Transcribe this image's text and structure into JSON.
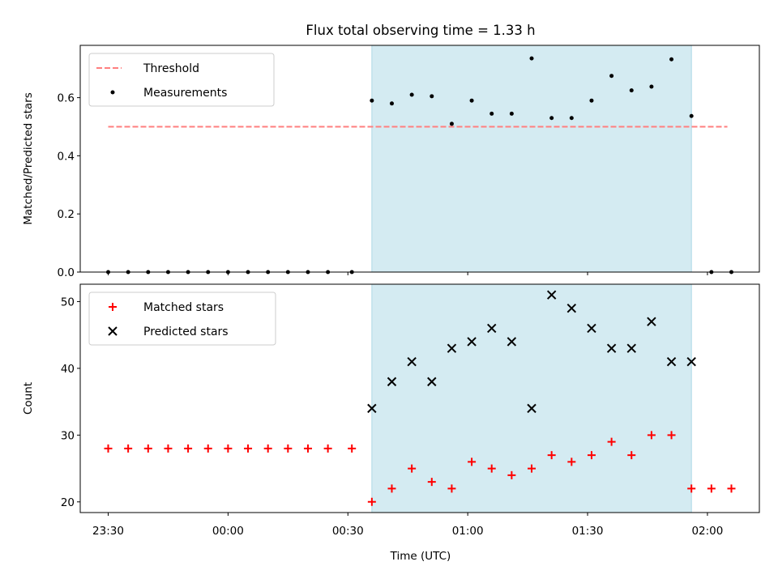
{
  "title": "Flux total observing time = 1.33 h",
  "x_axis": {
    "label": "Time (UTC)",
    "tick_labels": [
      "23:30",
      "00:00",
      "00:30",
      "01:00",
      "01:30",
      "02:00"
    ]
  },
  "colors": {
    "shade": "#add8e6",
    "threshold": "#ff7f7f",
    "measurement": "#000000",
    "matched": "#ff0000",
    "predicted": "#000000"
  },
  "chart_data": [
    {
      "type": "scatter",
      "ylabel": "Matched/Predicted stars",
      "ylim": [
        0,
        0.78
      ],
      "yticks": [
        0.0,
        0.2,
        0.4,
        0.6
      ],
      "xlim": [
        "23:23",
        "02:13"
      ],
      "shaded_interval": [
        "00:36",
        "01:56"
      ],
      "threshold": {
        "name": "Threshold",
        "value": 0.5,
        "x_from": "23:30",
        "x_to": "02:05"
      },
      "legend": {
        "position": "upper left",
        "entries": [
          "Threshold",
          "Measurements"
        ]
      },
      "series": [
        {
          "name": "Measurements",
          "x": [
            "23:30",
            "23:35",
            "23:40",
            "23:45",
            "23:50",
            "23:55",
            "00:00",
            "00:05",
            "00:10",
            "00:15",
            "00:20",
            "00:25",
            "00:31",
            "00:36",
            "00:41",
            "00:46",
            "00:51",
            "00:56",
            "01:01",
            "01:06",
            "01:11",
            "01:16",
            "01:21",
            "01:26",
            "01:31",
            "01:36",
            "01:41",
            "01:46",
            "01:51",
            "01:56",
            "02:01",
            "02:06"
          ],
          "y": [
            0,
            0,
            0,
            0,
            0,
            0,
            0,
            0,
            0,
            0,
            0,
            0,
            0,
            0.59,
            0.58,
            0.61,
            0.605,
            0.51,
            0.59,
            0.545,
            0.545,
            0.735,
            0.53,
            0.53,
            0.59,
            0.675,
            0.625,
            0.638,
            0.732,
            0.537,
            0,
            0
          ]
        }
      ]
    },
    {
      "type": "scatter",
      "ylabel": "Count",
      "ylim": [
        18.4,
        52.6
      ],
      "yticks": [
        20,
        30,
        40,
        50
      ],
      "xlim": [
        "23:23",
        "02:13"
      ],
      "shaded_interval": [
        "00:36",
        "01:56"
      ],
      "legend": {
        "position": "upper left",
        "entries": [
          "Matched stars",
          "Predicted stars"
        ]
      },
      "series": [
        {
          "name": "Matched stars",
          "marker": "+",
          "x": [
            "23:30",
            "23:35",
            "23:40",
            "23:45",
            "23:50",
            "23:55",
            "00:00",
            "00:05",
            "00:10",
            "00:15",
            "00:20",
            "00:25",
            "00:31",
            "00:36",
            "00:41",
            "00:46",
            "00:51",
            "00:56",
            "01:01",
            "01:06",
            "01:11",
            "01:16",
            "01:21",
            "01:26",
            "01:31",
            "01:36",
            "01:41",
            "01:46",
            "01:51",
            "01:56",
            "02:01",
            "02:06"
          ],
          "y": [
            28,
            28,
            28,
            28,
            28,
            28,
            28,
            28,
            28,
            28,
            28,
            28,
            28,
            20,
            22,
            25,
            23,
            22,
            26,
            25,
            24,
            25,
            27,
            26,
            27,
            29,
            27,
            30,
            30,
            22,
            22,
            22
          ]
        },
        {
          "name": "Predicted stars",
          "marker": "x",
          "x": [
            "00:36",
            "00:41",
            "00:46",
            "00:51",
            "00:56",
            "01:01",
            "01:06",
            "01:11",
            "01:16",
            "01:21",
            "01:26",
            "01:31",
            "01:36",
            "01:41",
            "01:46",
            "01:51",
            "01:56"
          ],
          "y": [
            34,
            38,
            41,
            38,
            43,
            44,
            46,
            44,
            34,
            51,
            49,
            46,
            43,
            43,
            47,
            41,
            41
          ]
        }
      ]
    }
  ]
}
